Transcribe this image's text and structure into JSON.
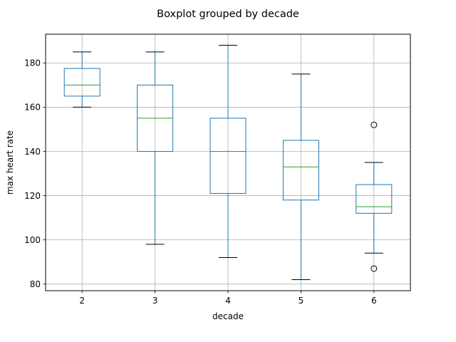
{
  "chart_data": {
    "type": "boxplot",
    "title": "Boxplot grouped by decade",
    "xlabel": "decade",
    "ylabel": "max heart rate",
    "categories": [
      "2",
      "3",
      "4",
      "5",
      "6"
    ],
    "yticks": [
      80,
      100,
      120,
      140,
      160,
      180
    ],
    "ylim": [
      77,
      193
    ],
    "grid": true,
    "colors": {
      "box": "#1f77b4",
      "median": "#2ca02c",
      "whisker": "#1f77b4",
      "cap": "#000000",
      "grid": "#b0b0b0",
      "outlier": "#000000"
    },
    "boxes": [
      {
        "category": "2",
        "whisker_low": 160,
        "q1": 165,
        "median": 170,
        "q3": 177.5,
        "whisker_high": 185,
        "outliers": []
      },
      {
        "category": "3",
        "whisker_low": 98,
        "q1": 140,
        "median": 155,
        "q3": 170,
        "whisker_high": 185,
        "outliers": []
      },
      {
        "category": "4",
        "whisker_low": 92,
        "q1": 121,
        "median": 140,
        "q3": 155,
        "whisker_high": 188,
        "outliers": []
      },
      {
        "category": "5",
        "whisker_low": 82,
        "q1": 118,
        "median": 133,
        "q3": 145,
        "whisker_high": 175,
        "outliers": []
      },
      {
        "category": "6",
        "whisker_low": 94,
        "q1": 112,
        "median": 115,
        "q3": 125,
        "whisker_high": 135,
        "outliers": [
          152,
          87
        ]
      }
    ]
  }
}
